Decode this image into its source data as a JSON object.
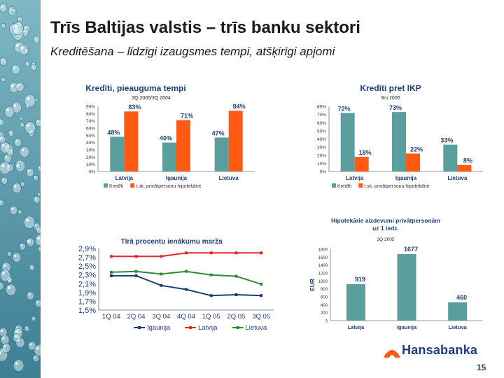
{
  "slide": {
    "title": "Trīs Baltijas valstis – trīs banku sektori",
    "subtitle": "Kreditēšana – līdzīgi izaugsmes tempi, atšķirīgi apjomi",
    "page_number": "15",
    "logo_text": "Hansabanka"
  },
  "colors": {
    "teal": "#5b9e9e",
    "orange": "#ff5a14",
    "red": "#e3262a",
    "green": "#2e8b3a",
    "navy": "#1f3f7a"
  },
  "chart_data": [
    {
      "type": "bar",
      "title": "Kredīti,  pieauguma tempi",
      "subtitle": "3Q 2005/3Q 2004",
      "categories": [
        "Latvija",
        "Igaunija",
        "Lietuva"
      ],
      "series": [
        {
          "name": "Kredīti",
          "values": [
            48,
            40,
            47
          ]
        },
        {
          "name": "t.sk. privātpersonu hipotekārie",
          "values": [
            83,
            71,
            84
          ]
        }
      ],
      "labels": [
        [
          "48%",
          "40%",
          "47%"
        ],
        [
          "83%",
          "71%",
          "84%"
        ]
      ],
      "ylim": [
        0,
        90
      ],
      "yticks": [
        "0%",
        "10%",
        "20%",
        "30%",
        "40%",
        "50%",
        "60%",
        "70%",
        "80%",
        "90%"
      ],
      "legend": "bottom"
    },
    {
      "type": "bar",
      "title": "Kredīti pret IKP",
      "subtitle": "9m 2005",
      "categories": [
        "Latvija",
        "Igaunija",
        "Lietuva"
      ],
      "series": [
        {
          "name": "Kredīti",
          "values": [
            72,
            73,
            33
          ]
        },
        {
          "name": "t.sk. privātpersonu hipotekārie",
          "values": [
            18,
            22,
            8
          ]
        }
      ],
      "labels": [
        [
          "72%",
          "73%",
          "33%"
        ],
        [
          "18%",
          "22%",
          "8%"
        ]
      ],
      "ylim": [
        0,
        80
      ],
      "yticks": [
        "0%",
        "10%",
        "20%",
        "30%",
        "40%",
        "50%",
        "60%",
        "70%",
        "80%"
      ],
      "legend": "bottom"
    },
    {
      "type": "line",
      "title": "Tīrā procentu ienākumu marža",
      "categories": [
        "1Q 04",
        "2Q 04",
        "3Q 04",
        "4Q 04",
        "1Q 05",
        "2Q 05",
        "3Q 05"
      ],
      "series": [
        {
          "name": "Igaunija",
          "values": [
            2.28,
            2.28,
            2.06,
            1.97,
            1.83,
            1.85,
            1.83
          ]
        },
        {
          "name": "Latvija",
          "values": [
            2.72,
            2.72,
            2.72,
            2.8,
            2.8,
            2.8,
            2.8
          ]
        },
        {
          "name": "Lietuva",
          "values": [
            2.36,
            2.38,
            2.32,
            2.38,
            2.3,
            2.27,
            2.09
          ]
        }
      ],
      "ylim": [
        1.5,
        2.9
      ],
      "yticks": [
        "1,5%",
        "1,7%",
        "1,9%",
        "2,1%",
        "2,3%",
        "2,5%",
        "2,7%",
        "2,9%"
      ],
      "legend": "bottom"
    },
    {
      "type": "bar",
      "title": "Hipotekārie aizdevumi privātpersonām uz 1 iedz.",
      "title_lines": [
        "Hipotekārie aizdevumi privātpersonām",
        "uz 1 iedz."
      ],
      "subtitle": "3Q 2005",
      "ylabel": "EUR",
      "categories": [
        "Latvija",
        "Igaunija",
        "Lietuva"
      ],
      "values": [
        919,
        1677,
        460
      ],
      "labels": [
        "919",
        "1677",
        "460"
      ],
      "ylim": [
        0,
        1800
      ],
      "yticks": [
        "0",
        "200",
        "400",
        "600",
        "800",
        "1000",
        "1200",
        "1400",
        "1600",
        "1800"
      ]
    }
  ]
}
